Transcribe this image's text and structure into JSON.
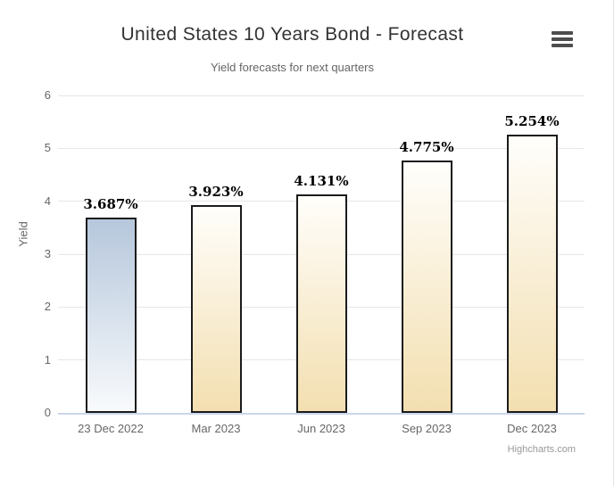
{
  "header": {
    "title": "United States 10 Years Bond - Forecast",
    "subtitle": "Yield forecasts for next quarters"
  },
  "menu": {
    "icon": "hamburger-icon"
  },
  "credit": {
    "label": "Highcharts.com"
  },
  "chart_data": {
    "type": "bar",
    "title": "United States 10 Years Bond - Forecast",
    "subtitle": "Yield forecasts for next quarters",
    "categories": [
      "23 Dec 2022",
      "Mar 2023",
      "Jun 2023",
      "Sep 2023",
      "Dec 2023"
    ],
    "values": [
      3.687,
      3.923,
      4.131,
      4.775,
      5.254
    ],
    "value_labels": [
      "3.687%",
      "3.923%",
      "4.131%",
      "4.775%",
      "5.254%"
    ],
    "xlabel": "",
    "ylabel": "Yield",
    "ylim": [
      0,
      6
    ],
    "yticks": [
      0,
      1,
      2,
      3,
      4,
      5,
      6
    ],
    "grid": true,
    "legend": false,
    "actual_index": 0,
    "colors": {
      "actual_bar_top": "#b6c7dc",
      "actual_bar_bottom": "#f8fafc",
      "forecast_bar_top": "#fffefb",
      "forecast_bar_bottom": "#f3dfb0",
      "bar_border": "#1b1b1b",
      "grid_line": "#e6e6e6",
      "axis_line": "#ccd6eb"
    }
  }
}
